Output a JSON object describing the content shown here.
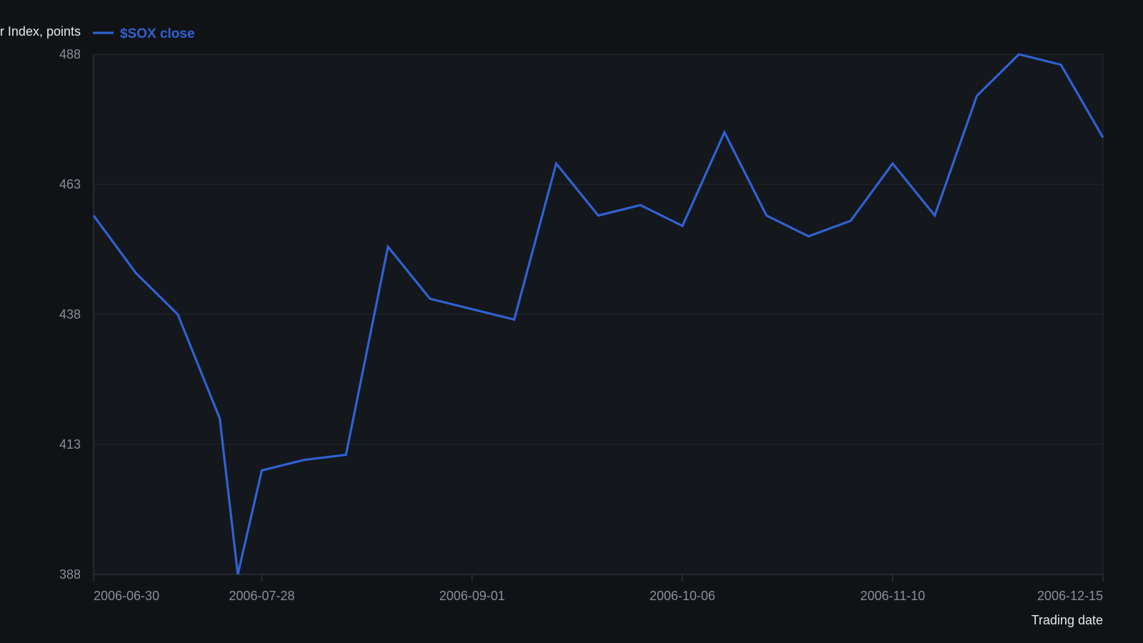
{
  "chart_data": {
    "type": "line",
    "ylabel": "Philadelphia Semiconductor Index, points",
    "xlabel": "Trading date",
    "legend_position": "top-left",
    "grid": true,
    "ylim": [
      388,
      488
    ],
    "yticks": [
      388,
      413,
      438,
      463,
      488
    ],
    "xlim": [
      "2006-06-30",
      "2006-12-15"
    ],
    "xticks": [
      "2006-06-30",
      "2006-07-28",
      "2006-09-01",
      "2006-10-06",
      "2006-11-10",
      "2006-12-15"
    ],
    "series": [
      {
        "name": "$SOX close",
        "color": "#2f62d3",
        "points": [
          {
            "x": "2006-06-30",
            "y": 457
          },
          {
            "x": "2006-07-07",
            "y": 446
          },
          {
            "x": "2006-07-14",
            "y": 438
          },
          {
            "x": "2006-07-21",
            "y": 418
          },
          {
            "x": "2006-07-24",
            "y": 388
          },
          {
            "x": "2006-07-28",
            "y": 408
          },
          {
            "x": "2006-08-04",
            "y": 410
          },
          {
            "x": "2006-08-11",
            "y": 411
          },
          {
            "x": "2006-08-18",
            "y": 451
          },
          {
            "x": "2006-08-25",
            "y": 441
          },
          {
            "x": "2006-09-08",
            "y": 437
          },
          {
            "x": "2006-09-15",
            "y": 467
          },
          {
            "x": "2006-09-22",
            "y": 457
          },
          {
            "x": "2006-09-29",
            "y": 459
          },
          {
            "x": "2006-10-06",
            "y": 455
          },
          {
            "x": "2006-10-13",
            "y": 473
          },
          {
            "x": "2006-10-20",
            "y": 457
          },
          {
            "x": "2006-10-27",
            "y": 453
          },
          {
            "x": "2006-11-03",
            "y": 456
          },
          {
            "x": "2006-11-10",
            "y": 467
          },
          {
            "x": "2006-11-17",
            "y": 457
          },
          {
            "x": "2006-11-24",
            "y": 480
          },
          {
            "x": "2006-12-01",
            "y": 488
          },
          {
            "x": "2006-12-08",
            "y": 486
          },
          {
            "x": "2006-12-15",
            "y": 472
          }
        ]
      }
    ]
  },
  "colors": {
    "background": "#101216",
    "plot_background": "#14171c",
    "grid": "#262a31",
    "axis": "#3a3f47",
    "tick_text": "#8a8f98",
    "title_text": "#e6e8eb"
  }
}
